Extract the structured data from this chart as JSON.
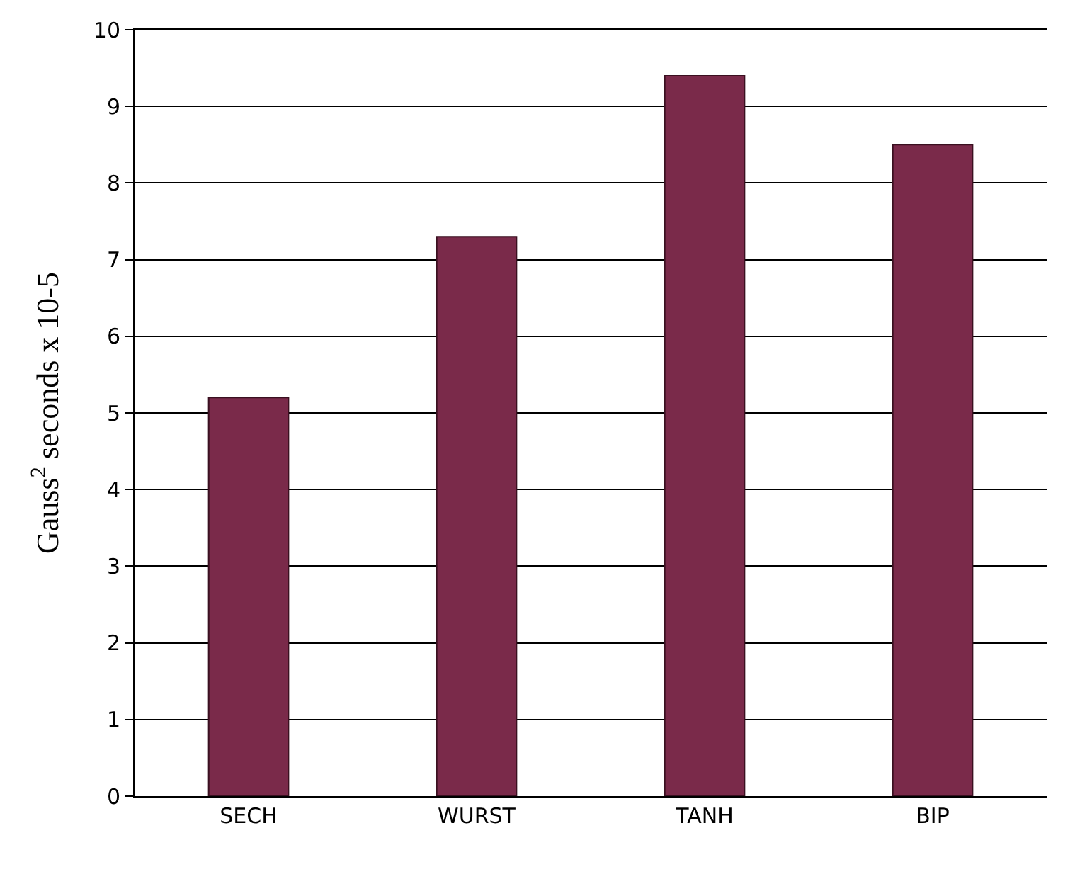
{
  "chart_data": {
    "type": "bar",
    "ylabel": "Gauss$^{2}$ seconds x 10-5",
    "categories": [
      "SECH",
      "WURST",
      "TANH",
      "BIP"
    ],
    "values": [
      5.2,
      7.3,
      9.4,
      8.5
    ],
    "color": "#7a2a4a",
    "ylim": [
      0,
      10
    ],
    "yticks": [
      0,
      1,
      2,
      3,
      4,
      5,
      6,
      7,
      8,
      9,
      10
    ],
    "grid": "y"
  }
}
